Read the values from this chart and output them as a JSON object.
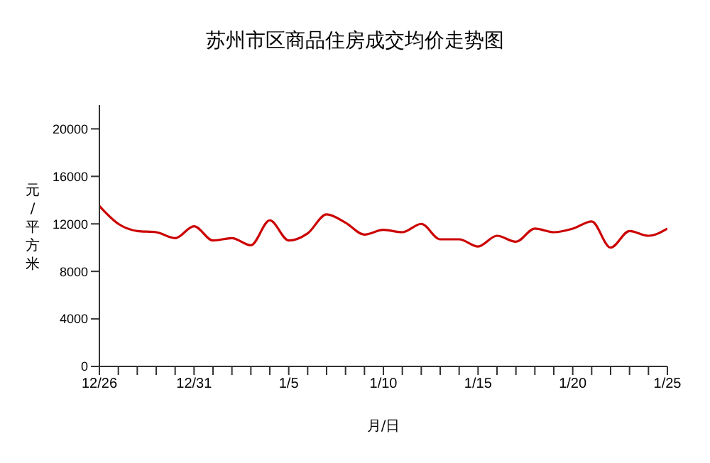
{
  "chart_data": {
    "type": "line",
    "title": "苏州市区商品住房成交均价走势图",
    "xlabel": "月/日",
    "ylabel": "元/平方米",
    "categories": [
      "12/26",
      null,
      null,
      null,
      null,
      "12/31",
      null,
      null,
      null,
      null,
      "1/5",
      null,
      null,
      null,
      null,
      "1/10",
      null,
      null,
      null,
      null,
      "1/15",
      null,
      null,
      null,
      null,
      "1/20",
      null,
      null,
      null,
      null,
      "1/25"
    ],
    "series": [
      {
        "color": "#cc0000",
        "values": [
          13500,
          12000,
          11400,
          11300,
          10800,
          11800,
          10600,
          10800,
          10200,
          12300,
          10600,
          11200,
          12800,
          12100,
          11100,
          11500,
          11300,
          12000,
          10700,
          10700,
          10100,
          11000,
          10500,
          11600,
          11300,
          11600,
          12200,
          10000,
          11400,
          11000,
          11600
        ]
      }
    ],
    "ylim": [
      0,
      22000
    ],
    "yticks": [
      0,
      4000,
      8000,
      12000,
      16000,
      20000
    ]
  }
}
